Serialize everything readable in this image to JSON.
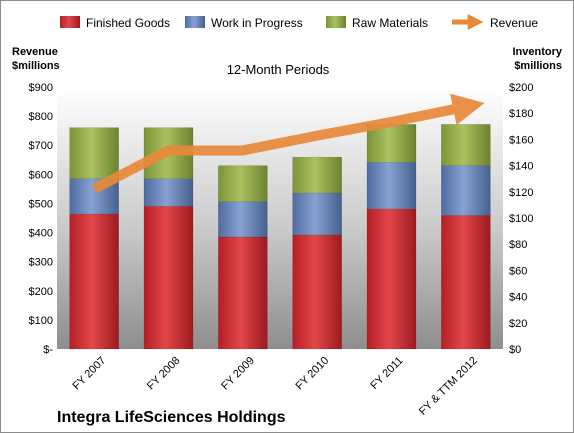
{
  "chart_data": {
    "type": "bar",
    "subtitle": "12-Month Periods",
    "company": "Integra LifeSciences Holdings",
    "categories": [
      "FY 2007",
      "FY 2008",
      "FY 2009",
      "FY 2010",
      "FY 2011",
      "FY & TTM 2012"
    ],
    "left_axis": {
      "label_line1": "Revenue",
      "label_line2": "$millions",
      "ylim": [
        0,
        900
      ],
      "ticks": [
        "$-",
        "$100",
        "$200",
        "$300",
        "$400",
        "$500",
        "$600",
        "$700",
        "$800",
        "$900"
      ]
    },
    "right_axis": {
      "label_line1": "Inventory",
      "label_line2": "$millions",
      "ylim": [
        0,
        200
      ],
      "ticks": [
        "$0",
        "$20",
        "$40",
        "$60",
        "$80",
        "$100",
        "$120",
        "$140",
        "$160",
        "$180",
        "$200"
      ]
    },
    "stack_series": [
      {
        "name": "Finished Goods",
        "axis": "right",
        "color": "#c0272d",
        "values": [
          103,
          109,
          85.5,
          87,
          107,
          102
        ]
      },
      {
        "name": "Work in Progress",
        "axis": "right",
        "color": "#5d7ab0",
        "values": [
          27,
          21,
          27,
          32,
          35.5,
          38
        ]
      },
      {
        "name": "Raw Materials",
        "axis": "right",
        "color": "#8fa845",
        "values": [
          39,
          39,
          27.5,
          27.5,
          29,
          31.5
        ]
      }
    ],
    "line_series": {
      "name": "Revenue",
      "axis": "left",
      "color": "#e8893a",
      "values": [
        550,
        682,
        682,
        733,
        780,
        832
      ]
    },
    "grid": false,
    "legend_position": "top"
  }
}
